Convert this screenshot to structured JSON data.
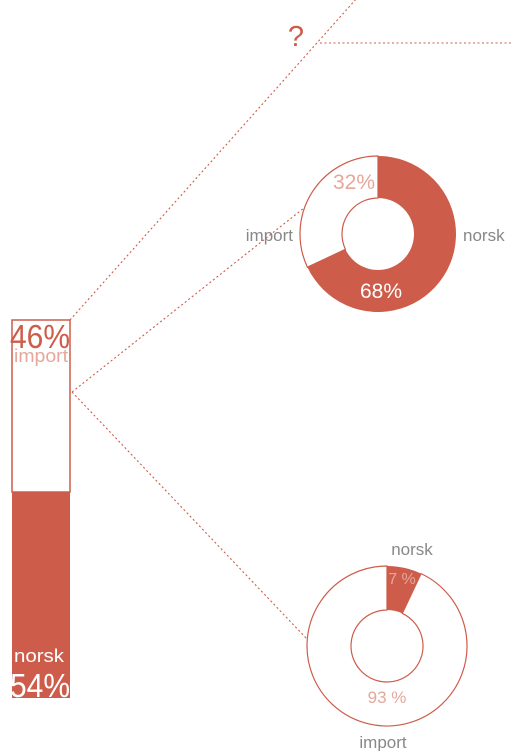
{
  "colors": {
    "accent": "#cd5c4a",
    "label": "#888888",
    "white": "#ffffff"
  },
  "question_mark": "?",
  "chart_data": [
    {
      "type": "bar",
      "stacked": true,
      "series": [
        {
          "name": "import",
          "value": 46,
          "label": "46%"
        },
        {
          "name": "norsk",
          "value": 54,
          "label": "54%"
        }
      ]
    },
    {
      "type": "pie",
      "donut": true,
      "slices": [
        {
          "name": "norsk",
          "value": 68,
          "label": "68%"
        },
        {
          "name": "import",
          "value": 32,
          "label": "32%"
        }
      ]
    },
    {
      "type": "pie",
      "donut": true,
      "slices": [
        {
          "name": "norsk",
          "value": 7,
          "label": "7 %"
        },
        {
          "name": "import",
          "value": 93,
          "label": "93 %"
        }
      ]
    }
  ]
}
